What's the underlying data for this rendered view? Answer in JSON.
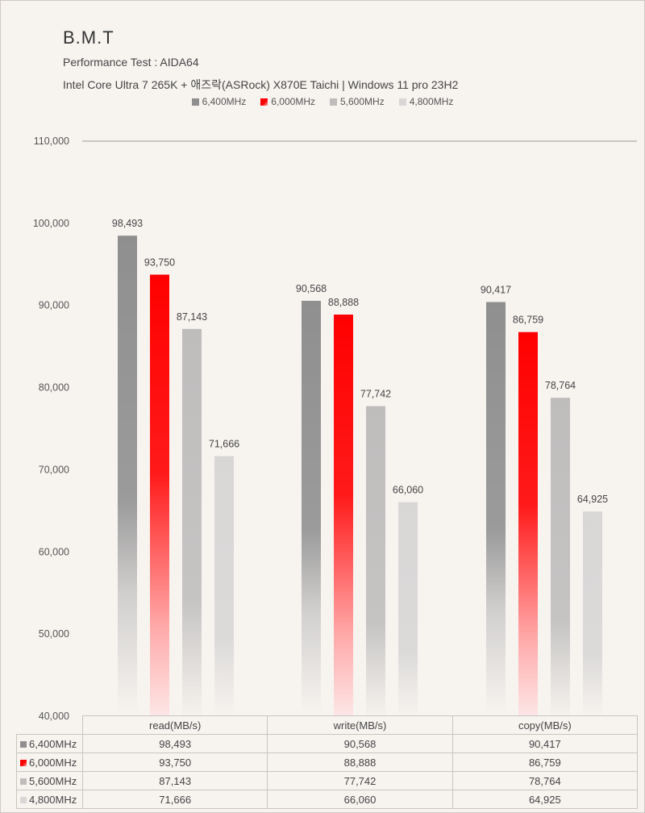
{
  "header": {
    "title": "B.M.T",
    "subtitle": "Performance Test : AIDA64",
    "subtitle2": "Intel Core Ultra 7 265K + 애즈락(ASRock) X870E Taichi | Windows 11 pro 23H2"
  },
  "colors": {
    "6400": "#8f8f8f",
    "6000": "#ff0000",
    "5600": "#bfbdbc",
    "4800": "#d9d7d6"
  },
  "chart_data": {
    "type": "bar",
    "title": "B.M.T",
    "categories": [
      "read(MB/s)",
      "write(MB/s)",
      "copy(MB/s)"
    ],
    "series": [
      {
        "name": "6,400MHz",
        "values": [
          98493,
          90568,
          90417
        ],
        "value_labels": [
          "98,493",
          "90,568",
          "90,417"
        ]
      },
      {
        "name": "6,000MHz",
        "values": [
          93750,
          88888,
          86759
        ],
        "value_labels": [
          "93,750",
          "88,888",
          "86,759"
        ]
      },
      {
        "name": "5,600MHz",
        "values": [
          87143,
          77742,
          78764
        ],
        "value_labels": [
          "87,143",
          "77,742",
          "78,764"
        ]
      },
      {
        "name": "4,800MHz",
        "values": [
          71666,
          66060,
          64925
        ],
        "value_labels": [
          "71,666",
          "66,060",
          "64,925"
        ]
      }
    ],
    "ylim": [
      40000,
      110000
    ],
    "yticks": [
      40000,
      50000,
      60000,
      70000,
      80000,
      90000,
      100000,
      110000
    ],
    "ytick_labels": [
      "40,000",
      "50,000",
      "60,000",
      "70,000",
      "80,000",
      "90,000",
      "100,000",
      "110,000"
    ],
    "legend_position": "top",
    "grid": "top line only",
    "data_table": true
  }
}
